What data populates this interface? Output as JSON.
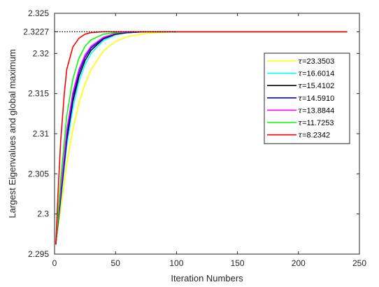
{
  "chart_data": {
    "type": "line",
    "title": "",
    "xlabel": "Iteration Numbers",
    "ylabel": "Largest Eigenvalues and global maximum",
    "xlim": [
      0,
      250
    ],
    "ylim": [
      2.295,
      2.325
    ],
    "xticks": [
      0,
      50,
      100,
      150,
      200,
      250
    ],
    "xtick_labels": [
      "0",
      "50",
      "100",
      "150",
      "200",
      "250"
    ],
    "yticks": [
      2.295,
      2.3,
      2.305,
      2.31,
      2.315,
      2.32,
      2.3227,
      2.325
    ],
    "ytick_labels": [
      "2.295",
      "2.3",
      "2.305",
      "2.31",
      "2.315",
      "2.32",
      "2.3227",
      "2.325"
    ],
    "grid": false,
    "legend_position": "right",
    "global_maximum": {
      "value": 2.3227,
      "style": "dotted",
      "color": "#000000",
      "x_range": [
        0,
        100
      ]
    },
    "series": [
      {
        "name": "τ=23.3503",
        "tau_symbol": "τ",
        "tau_value": "=23.3503",
        "color": "#ffff00",
        "x": [
          1,
          5,
          10,
          15,
          20,
          25,
          30,
          40,
          50,
          60,
          75,
          100,
          150,
          200,
          240
        ],
        "y": [
          2.2962,
          2.3005,
          2.3062,
          2.3105,
          2.3138,
          2.3162,
          2.318,
          2.3203,
          2.3215,
          2.3221,
          2.3225,
          2.3227,
          2.3227,
          2.3227,
          2.3227
        ]
      },
      {
        "name": "τ=16.6014",
        "tau_symbol": "τ",
        "tau_value": "=16.6014",
        "color": "#00ffff",
        "x": [
          1,
          5,
          10,
          15,
          20,
          25,
          30,
          40,
          50,
          60,
          75,
          100,
          150,
          200,
          240
        ],
        "y": [
          2.2962,
          2.3015,
          2.3085,
          2.3132,
          2.3165,
          2.3186,
          2.32,
          2.3216,
          2.3223,
          2.3226,
          2.3227,
          2.3227,
          2.3227,
          2.3227,
          2.3227
        ]
      },
      {
        "name": "τ=15.4102",
        "tau_symbol": "τ",
        "tau_value": "=15.4102",
        "color": "#000000",
        "x": [
          1,
          5,
          10,
          15,
          20,
          25,
          30,
          40,
          50,
          60,
          75,
          100,
          150,
          200,
          240
        ],
        "y": [
          2.2962,
          2.302,
          2.3092,
          2.314,
          2.3171,
          2.3191,
          2.3204,
          2.3218,
          2.3224,
          2.3226,
          2.3227,
          2.3227,
          2.3227,
          2.3227,
          2.3227
        ]
      },
      {
        "name": "τ=14.5910",
        "tau_symbol": "τ",
        "tau_value": "=14.5910",
        "color": "#0000ff",
        "x": [
          1,
          5,
          10,
          15,
          20,
          25,
          30,
          40,
          50,
          60,
          75,
          100,
          150,
          200,
          240
        ],
        "y": [
          2.2962,
          2.3024,
          2.3098,
          2.3146,
          2.3176,
          2.3195,
          2.3207,
          2.3219,
          2.3225,
          2.3226,
          2.3227,
          2.3227,
          2.3227,
          2.3227,
          2.3227
        ]
      },
      {
        "name": "τ=13.8844",
        "tau_symbol": "τ",
        "tau_value": "=13.8844",
        "color": "#ff00ff",
        "x": [
          1,
          5,
          10,
          15,
          20,
          25,
          30,
          40,
          50,
          60,
          75,
          100,
          150,
          200,
          240
        ],
        "y": [
          2.2962,
          2.3028,
          2.3104,
          2.3151,
          2.318,
          2.3198,
          2.3209,
          2.322,
          2.3225,
          2.3227,
          2.3227,
          2.3227,
          2.3227,
          2.3227,
          2.3227
        ]
      },
      {
        "name": "τ=11.7253",
        "tau_symbol": "τ",
        "tau_value": "=11.7253",
        "color": "#00ff00",
        "x": [
          1,
          5,
          10,
          15,
          20,
          25,
          30,
          40,
          50,
          60,
          75,
          100,
          150,
          200,
          240
        ],
        "y": [
          2.2962,
          2.3042,
          2.3122,
          2.3168,
          2.3194,
          2.3209,
          2.3217,
          2.3224,
          2.3226,
          2.3227,
          2.3227,
          2.3227,
          2.3227,
          2.3227,
          2.3227
        ]
      },
      {
        "name": "τ=8.2342",
        "tau_symbol": "τ",
        "tau_value": "=8.2342",
        "color": "#ff0000",
        "x": [
          1,
          3,
          5,
          8,
          10,
          15,
          20,
          25,
          30,
          40,
          50,
          60,
          75,
          100,
          150,
          200,
          240
        ],
        "y": [
          2.2962,
          2.303,
          2.309,
          2.315,
          2.318,
          2.3208,
          2.3219,
          2.3224,
          2.3226,
          2.3227,
          2.3227,
          2.3227,
          2.3227,
          2.3227,
          2.3227,
          2.3227,
          2.3227
        ]
      }
    ]
  }
}
